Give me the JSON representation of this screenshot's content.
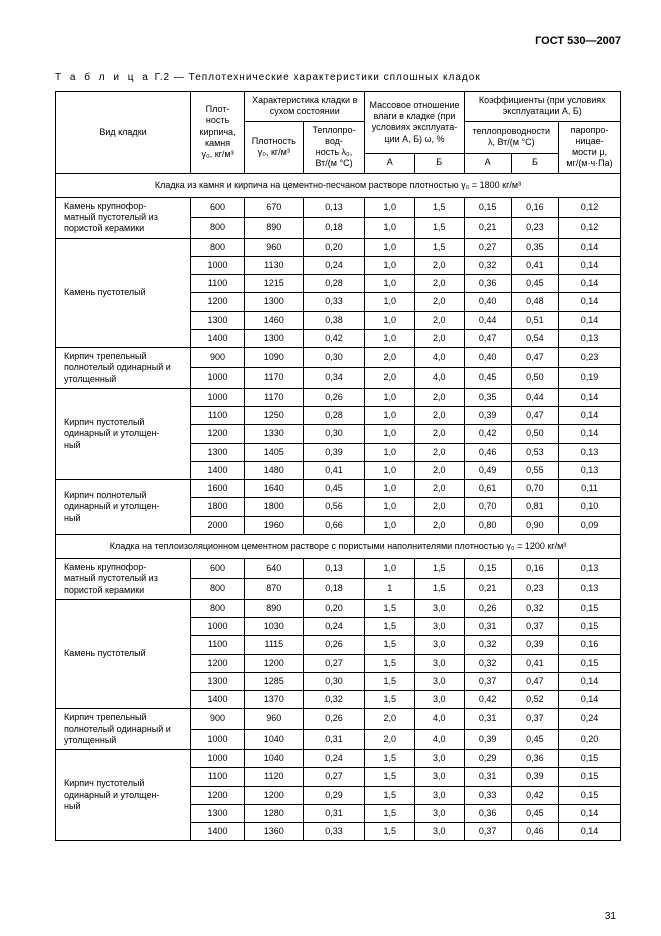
{
  "doc_header": "ГОСТ 530—2007",
  "caption_prefix": "Т а б л и ц а",
  "caption_num": "Г.2",
  "caption_title": "— Теплотехнические характеристики сплошных кладок",
  "page_number": "31",
  "headers": {
    "kind": "Вид кладки",
    "density": "Плот-\nность\nкирпича,\nкамня\nγ₀, кг/м³",
    "dry_group": "Характеристика кладки в сухом состоянии",
    "dry_density": "Плотность\nγ₀, кг/м³",
    "dry_cond": "Теплопро-\nвод-\nность λ₀,\nВт/(м °С)",
    "moisture_group": "Массовое отношение влаги в кладке (при условиях эксплуата-\nции А, Б) ω, %",
    "coef_group": "Коэффициенты (при условиях эксплуатации А, Б)",
    "cond": "теплопроводности λ, Вт/(м °С)",
    "vapor": "паропро-\nницае-\nмости μ,\nмг/(м·ч·Па)",
    "A": "А",
    "B": "Б"
  },
  "section1": "Кладка из камня и кирпича на цементно-песчаном растворе плотностью γ₀ = 1800 кг/м³",
  "section2": "Кладка на теплоизоляционном цементном растворе с пористыми наполнителями плотностью γ₀ = 1200 кг/м³",
  "groups": [
    {
      "label": "Камень крупнофор-\nматный пустотелый из пористой керамики",
      "rows": [
        [
          "600",
          "670",
          "0,13",
          "1,0",
          "1,5",
          "0,15",
          "0,16",
          "0,12"
        ],
        [
          "800",
          "890",
          "0,18",
          "1,0",
          "1,5",
          "0,21",
          "0,23",
          "0,12"
        ]
      ]
    },
    {
      "label": "Камень пустотелый",
      "rows": [
        [
          "800",
          "960",
          "0,20",
          "1,0",
          "1,5",
          "0,27",
          "0,35",
          "0,14"
        ],
        [
          "1000",
          "1130",
          "0,24",
          "1,0",
          "2,0",
          "0,32",
          "0,41",
          "0,14"
        ],
        [
          "1100",
          "1215",
          "0,28",
          "1,0",
          "2,0",
          "0,36",
          "0,45",
          "0,14"
        ],
        [
          "1200",
          "1300",
          "0,33",
          "1,0",
          "2,0",
          "0,40",
          "0,48",
          "0,14"
        ],
        [
          "1300",
          "1460",
          "0,38",
          "1,0",
          "2,0",
          "0,44",
          "0,51",
          "0,14"
        ],
        [
          "1400",
          "1300",
          "0,42",
          "1,0",
          "2,0",
          "0,47",
          "0,54",
          "0,13"
        ]
      ]
    },
    {
      "label": "Кирпич трепельный полнотелый одинарный и утолщенный",
      "rows": [
        [
          "900",
          "1090",
          "0,30",
          "2,0",
          "4,0",
          "0,40",
          "0,47",
          "0,23"
        ],
        [
          "1000",
          "1170",
          "0,34",
          "2,0",
          "4,0",
          "0,45",
          "0,50",
          "0,19"
        ]
      ]
    },
    {
      "label": "Кирпич пустотелый одинарный и утолщен-\nный",
      "rows": [
        [
          "1000",
          "1170",
          "0,26",
          "1,0",
          "2,0",
          "0,35",
          "0,44",
          "0,14"
        ],
        [
          "1100",
          "1250",
          "0,28",
          "1,0",
          "2,0",
          "0,39",
          "0,47",
          "0,14"
        ],
        [
          "1200",
          "1330",
          "0,30",
          "1,0",
          "2,0",
          "0,42",
          "0,50",
          "0,14"
        ],
        [
          "1300",
          "1405",
          "0,39",
          "1,0",
          "2,0",
          "0,46",
          "0,53",
          "0,13"
        ],
        [
          "1400",
          "1480",
          "0,41",
          "1,0",
          "2,0",
          "0,49",
          "0,55",
          "0,13"
        ]
      ]
    },
    {
      "label": "Кирпич полнотелый одинарный и утолщен-\nный",
      "rows": [
        [
          "1600",
          "1640",
          "0,45",
          "1,0",
          "2,0",
          "0,61",
          "0,70",
          "0,11"
        ],
        [
          "1800",
          "1800",
          "0,56",
          "1,0",
          "2,0",
          "0,70",
          "0,81",
          "0,10"
        ],
        [
          "2000",
          "1960",
          "0,66",
          "1,0",
          "2,0",
          "0,80",
          "0,90",
          "0,09"
        ]
      ]
    }
  ],
  "groups2": [
    {
      "label": "Камень крупнофор-\nматный пустотелый из пористой керамики",
      "rows": [
        [
          "600",
          "640",
          "0,13",
          "1,0",
          "1,5",
          "0,15",
          "0,16",
          "0,13"
        ],
        [
          "800",
          "870",
          "0,18",
          "1",
          "1,5",
          "0,21",
          "0,23",
          "0,13"
        ]
      ]
    },
    {
      "label": "Камень пустотелый",
      "rows": [
        [
          "800",
          "890",
          "0,20",
          "1,5",
          "3,0",
          "0,26",
          "0,32",
          "0,15"
        ],
        [
          "1000",
          "1030",
          "0,24",
          "1,5",
          "3,0",
          "0,31",
          "0,37",
          "0,15"
        ],
        [
          "1100",
          "1115",
          "0,26",
          "1,5",
          "3,0",
          "0,32",
          "0,39",
          "0,16"
        ],
        [
          "1200",
          "1200",
          "0,27",
          "1,5",
          "3,0",
          "0,32",
          "0,41",
          "0,15"
        ],
        [
          "1300",
          "1285",
          "0,30",
          "1,5",
          "3,0",
          "0,37",
          "0,47",
          "0,14"
        ],
        [
          "1400",
          "1370",
          "0,32",
          "1,5",
          "3,0",
          "0,42",
          "0,52",
          "0,14"
        ]
      ]
    },
    {
      "label": "Кирпич трепельный полнотелый одинарный и утолщенный",
      "rows": [
        [
          "900",
          "960",
          "0,26",
          "2,0",
          "4,0",
          "0,31",
          "0,37",
          "0,24"
        ],
        [
          "1000",
          "1040",
          "0,31",
          "2,0",
          "4,0",
          "0,39",
          "0,45",
          "0,20"
        ]
      ]
    },
    {
      "label": "Кирпич пустотелый одинарный и утолщен-\nный",
      "rows": [
        [
          "1000",
          "1040",
          "0,24",
          "1,5",
          "3,0",
          "0,29",
          "0,36",
          "0,15"
        ],
        [
          "1100",
          "1120",
          "0,27",
          "1,5",
          "3,0",
          "0,31",
          "0,39",
          "0,15"
        ],
        [
          "1200",
          "1200",
          "0,29",
          "1,5",
          "3,0",
          "0,33",
          "0,42",
          "0,15"
        ],
        [
          "1300",
          "1280",
          "0,31",
          "1,5",
          "3,0",
          "0,36",
          "0,45",
          "0,14"
        ],
        [
          "1400",
          "1360",
          "0,33",
          "1,5",
          "3,0",
          "0,37",
          "0,46",
          "0,14"
        ]
      ]
    }
  ]
}
